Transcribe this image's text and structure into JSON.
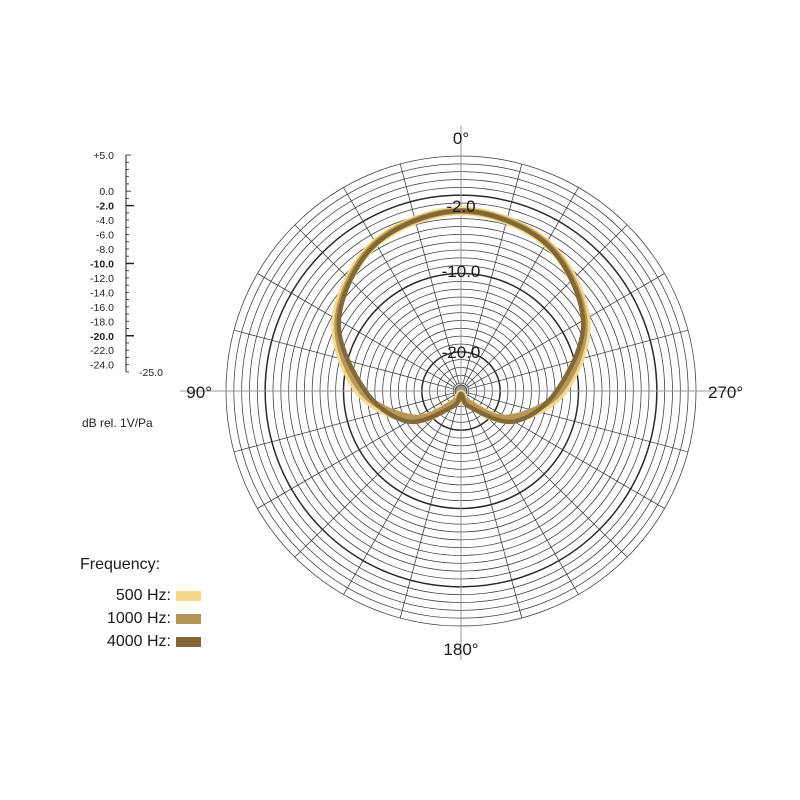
{
  "chart_data": {
    "type": "polar-line",
    "angle_labels": [
      "0°",
      "90°",
      "180°",
      "270°"
    ],
    "scale": {
      "ticks": [
        "+5.0",
        "0.0",
        "-2.0",
        "-4.0",
        "-6.0",
        "-8.0",
        "-10.0",
        "-12.0",
        "-14.0",
        "-16.0",
        "-18.0",
        "-20.0",
        "-22.0",
        "-24.0"
      ],
      "bold_ticks": [
        "-2.0",
        "-10.0",
        "-20.0"
      ],
      "min_label": "-25.0",
      "unit": "dB rel. 1V/Pa",
      "range": [
        -25,
        5
      ]
    },
    "ring_labels": [
      "-2.0",
      "-10.0",
      "-20.0"
    ],
    "legend_title": "Frequency:",
    "series": [
      {
        "name": "500 Hz:",
        "color": "#f4d98c",
        "angles_deg": [
          0,
          30,
          60,
          90,
          120,
          150,
          165,
          180
        ],
        "values_db": [
          -2.0,
          -3.2,
          -6.6,
          -12.0,
          -17.8,
          -23.2,
          -24.3,
          -24.6
        ]
      },
      {
        "name": "1000 Hz:",
        "color": "#b59656",
        "angles_deg": [
          0,
          30,
          60,
          90,
          120,
          150,
          165,
          180
        ],
        "values_db": [
          -2.0,
          -3.2,
          -6.8,
          -12.3,
          -18.2,
          -23.4,
          -24.3,
          -24.6
        ]
      },
      {
        "name": "4000 Hz:",
        "color": "#806536",
        "angles_deg": [
          0,
          30,
          60,
          90,
          120,
          150,
          165,
          180
        ],
        "values_db": [
          -2.0,
          -3.3,
          -7.0,
          -12.8,
          -17.2,
          -22.6,
          -24.3,
          -24.6
        ]
      }
    ]
  }
}
